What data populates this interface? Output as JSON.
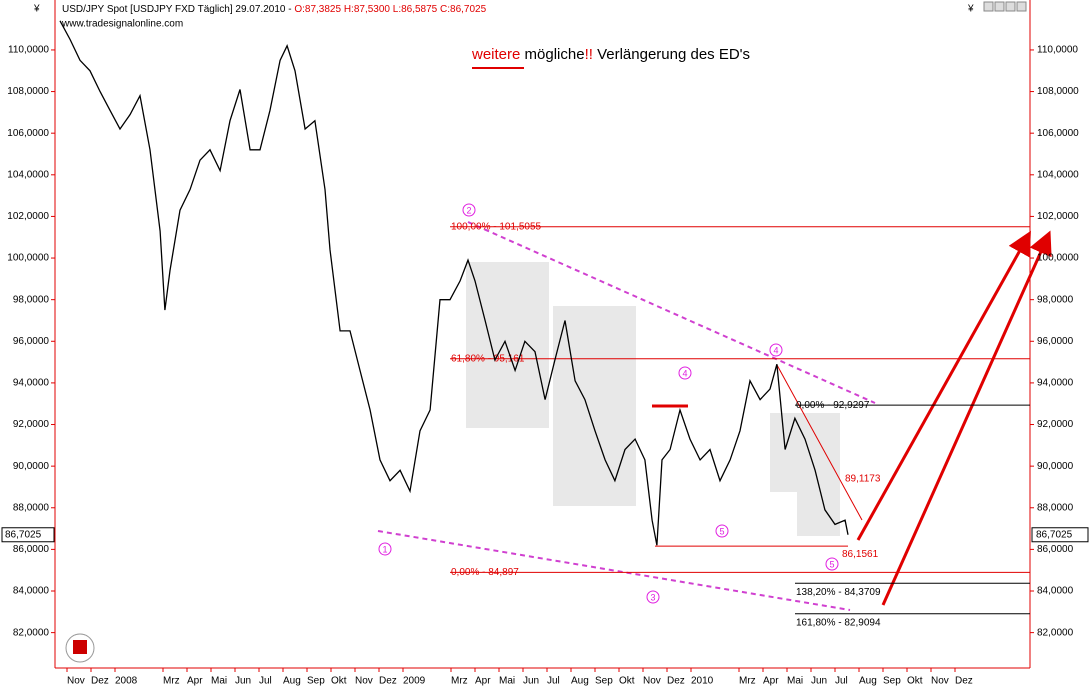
{
  "chart_data": {
    "type": "line",
    "currency_symbol": "¥",
    "header": "USD/JPY Spot [USDJPY FXD  Täglich] 29.07.2010 - ",
    "ohlc": "O:87,3825 H:87,5300 L:86,5875 C:86,7025",
    "source": "www.tradesignalonline.com",
    "title_parts": [
      "weitere",
      " mögliche",
      "!!",
      " Verlängerung des ED's"
    ],
    "xlim": [
      -0.5,
      40.125
    ],
    "ylim": [
      80.3,
      112.4
    ],
    "xticks": [
      {
        "value": 0,
        "label": "Nov"
      },
      {
        "value": 1,
        "label": "Dez"
      },
      {
        "value": 2,
        "label": "2008"
      },
      {
        "value": 4,
        "label": "Mrz"
      },
      {
        "value": 5,
        "label": "Apr"
      },
      {
        "value": 6,
        "label": "Mai"
      },
      {
        "value": 7,
        "label": "Jun"
      },
      {
        "value": 8,
        "label": "Jul"
      },
      {
        "value": 9,
        "label": "Aug"
      },
      {
        "value": 10,
        "label": "Sep"
      },
      {
        "value": 11,
        "label": "Okt"
      },
      {
        "value": 12,
        "label": "Nov"
      },
      {
        "value": 13,
        "label": "Dez"
      },
      {
        "value": 14,
        "label": "2009"
      },
      {
        "value": 16,
        "label": "Mrz"
      },
      {
        "value": 17,
        "label": "Apr"
      },
      {
        "value": 18,
        "label": "Mai"
      },
      {
        "value": 19,
        "label": "Jun"
      },
      {
        "value": 20,
        "label": "Jul"
      },
      {
        "value": 21,
        "label": "Aug"
      },
      {
        "value": 22,
        "label": "Sep"
      },
      {
        "value": 23,
        "label": "Okt"
      },
      {
        "value": 24,
        "label": "Nov"
      },
      {
        "value": 25,
        "label": "Dez"
      },
      {
        "value": 26,
        "label": "2010"
      },
      {
        "value": 28,
        "label": "Mrz"
      },
      {
        "value": 29,
        "label": "Apr"
      },
      {
        "value": 30,
        "label": "Mai"
      },
      {
        "value": 31,
        "label": "Jun"
      },
      {
        "value": 32,
        "label": "Jul"
      },
      {
        "value": 33,
        "label": "Aug"
      },
      {
        "value": 34,
        "label": "Sep"
      },
      {
        "value": 35,
        "label": "Okt"
      },
      {
        "value": 36,
        "label": "Nov"
      },
      {
        "value": 37,
        "label": "Dez"
      }
    ],
    "yticks": [
      {
        "value": 82,
        "label": "82,0000"
      },
      {
        "value": 84,
        "label": "84,0000"
      },
      {
        "value": 86,
        "label": "86,0000"
      },
      {
        "value": 88,
        "label": "88,0000"
      },
      {
        "value": 90,
        "label": "90,0000"
      },
      {
        "value": 92,
        "label": "92,0000"
      },
      {
        "value": 94,
        "label": "94,0000"
      },
      {
        "value": 96,
        "label": "96,0000"
      },
      {
        "value": 98,
        "label": "98,0000"
      },
      {
        "value": 100,
        "label": "100,0000"
      },
      {
        "value": 102,
        "label": "102,0000"
      },
      {
        "value": 104,
        "label": "104,0000"
      },
      {
        "value": 106,
        "label": "106,0000"
      },
      {
        "value": 108,
        "label": "108,0000"
      },
      {
        "value": 110,
        "label": "110,0000"
      }
    ],
    "series": [
      {
        "name": "USDJPY",
        "color": "#000000",
        "x": [
          -0.29,
          0.13,
          0.54,
          0.96,
          1.38,
          1.79,
          2.21,
          2.63,
          3.04,
          3.46,
          3.88,
          4.08,
          4.29,
          4.71,
          5.13,
          5.54,
          5.96,
          6.38,
          6.79,
          7.21,
          7.63,
          8.04,
          8.46,
          8.88,
          9.17,
          9.5,
          9.92,
          10.33,
          10.75,
          10.96,
          11.38,
          11.79,
          12.21,
          12.63,
          13.04,
          13.46,
          13.88,
          14.29,
          14.71,
          15.13,
          15.54,
          15.96,
          16.38,
          16.71,
          17,
          17.42,
          17.83,
          18.25,
          18.67,
          19.08,
          19.5,
          19.92,
          20.33,
          20.75,
          21.17,
          21.58,
          22,
          22.42,
          22.83,
          23.25,
          23.67,
          24.08,
          24.38,
          24.58,
          24.79,
          25.13,
          25.54,
          25.96,
          26.38,
          26.79,
          27.21,
          27.63,
          28.04,
          28.46,
          28.88,
          29.29,
          29.58,
          29.92,
          30.33,
          30.75,
          31.17,
          31.58,
          32,
          32.42,
          32.54
        ],
        "values": [
          111.4,
          110.5,
          109.5,
          109,
          108,
          107.1,
          106.2,
          106.9,
          107.8,
          105.2,
          101.3,
          97.5,
          99.4,
          102.3,
          103.3,
          104.7,
          105.2,
          104.2,
          106.6,
          108.1,
          105.2,
          105.2,
          107.1,
          109.5,
          110.2,
          109,
          106.2,
          106.6,
          103.3,
          100.4,
          96.5,
          96.5,
          94.6,
          92.7,
          90.3,
          89.3,
          89.8,
          88.8,
          91.7,
          92.7,
          98,
          98,
          98.9,
          99.9,
          98.9,
          97,
          95.1,
          96,
          94.6,
          96,
          95.5,
          93.2,
          95.1,
          97,
          94.1,
          93.2,
          91.7,
          90.3,
          89.3,
          90.8,
          91.3,
          90.3,
          87.4,
          86.2,
          90.3,
          90.8,
          92.7,
          91.3,
          90.3,
          90.8,
          89.3,
          90.3,
          91.7,
          94.1,
          93.2,
          93.7,
          94.9,
          90.8,
          92.3,
          91.3,
          89.8,
          87.9,
          87.2,
          87.4,
          86.7
        ]
      }
    ],
    "last_price": {
      "value": 86.7025,
      "label": "86,7025"
    },
    "levels": [
      {
        "label": "100,00% - 101,5055",
        "value": 101.5055,
        "color": "#e00000"
      },
      {
        "label": "61,80% - 95,161",
        "value": 95.161,
        "color": "#e00000"
      },
      {
        "label": "0,00% - 84,897",
        "value": 84.897,
        "color": "#e00000"
      },
      {
        "label": "0,00% - 92,9297",
        "value": 92.9297,
        "color": "#000000"
      },
      {
        "label": "138,20% - 84,3709",
        "value": 84.3709,
        "color": "#000000"
      },
      {
        "label": "161,80% - 82,9094",
        "value": 82.9094,
        "color": "#000000"
      },
      {
        "label": "86,1561",
        "value": 86.1561,
        "color": "#e00000"
      }
    ],
    "target_label": "89,1173",
    "waves": [
      "1",
      "2",
      "3",
      "4",
      "4",
      "5",
      "5"
    ]
  }
}
